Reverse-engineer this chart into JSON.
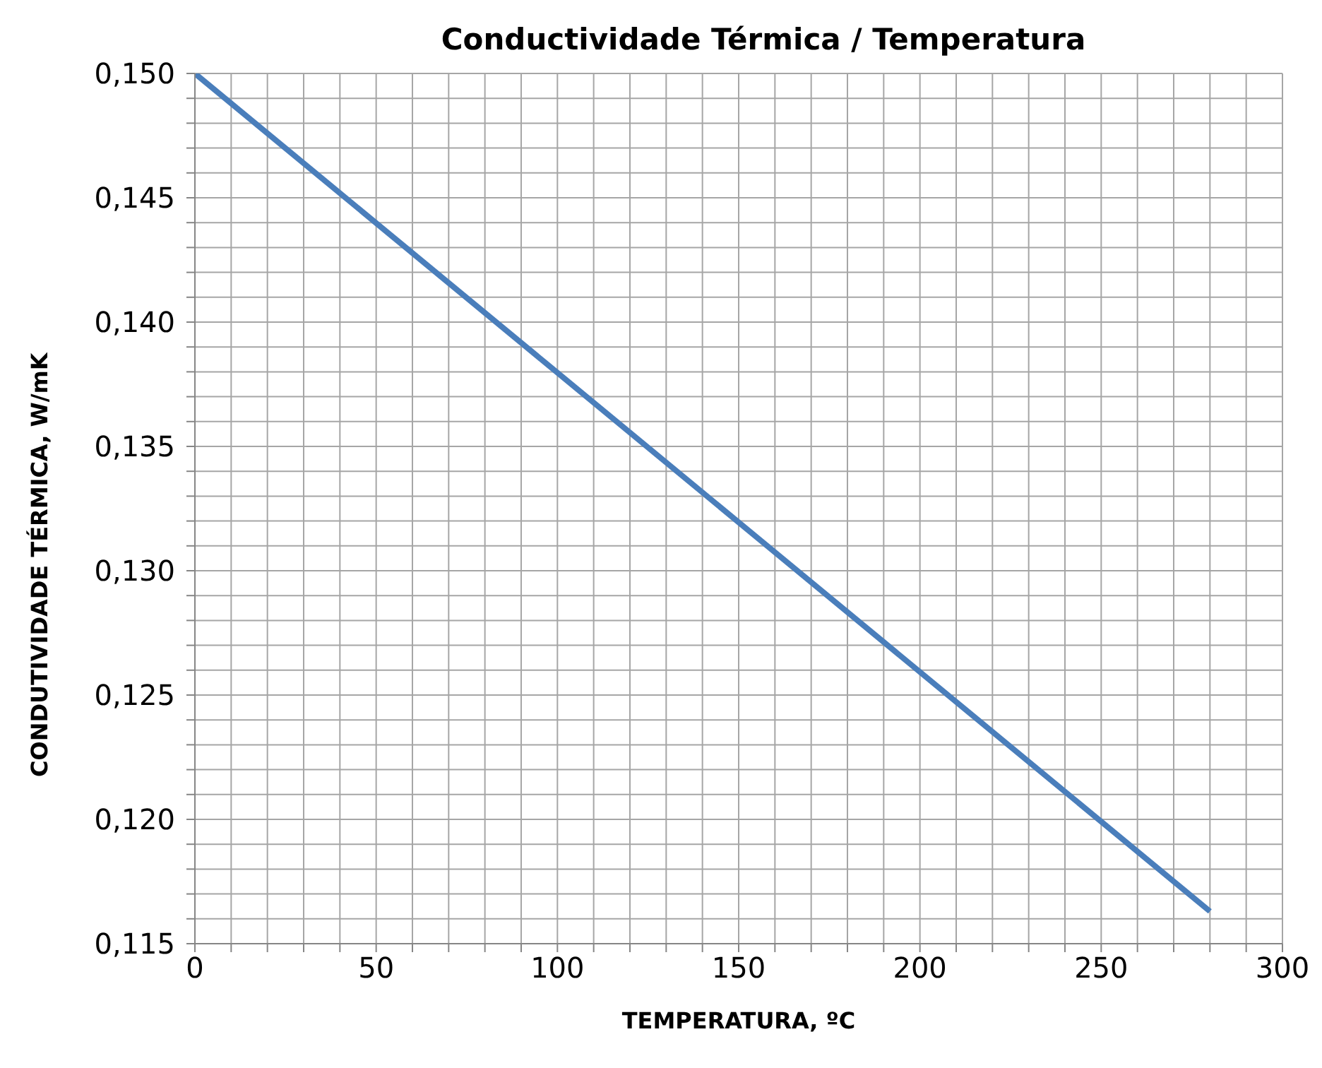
{
  "chart_data": {
    "type": "line",
    "title": "Conductividade Térmica / Temperatura",
    "xlabel": "TEMPERATURA, ºC",
    "ylabel": "CONDUTIVIDADE TÉRMICA, W/mK",
    "x": [
      0,
      280
    ],
    "series": [
      {
        "color": "#4a7ebb",
        "values": [
          0.15,
          0.1163
        ]
      }
    ],
    "xlim": [
      0,
      300
    ],
    "xticks": [
      0,
      {
        "value": 10,
        "label": null
      },
      {
        "value": 20,
        "label": null
      },
      {
        "value": 30,
        "label": null
      },
      {
        "value": 40,
        "label": null
      },
      50,
      {
        "value": 60,
        "label": null
      },
      {
        "value": 70,
        "label": null
      },
      {
        "value": 80,
        "label": null
      },
      {
        "value": 90,
        "label": null
      },
      100,
      {
        "value": 110,
        "label": null
      },
      {
        "value": 120,
        "label": null
      },
      {
        "value": 130,
        "label": null
      },
      {
        "value": 140,
        "label": null
      },
      150,
      {
        "value": 160,
        "label": null
      },
      {
        "value": 170,
        "label": null
      },
      {
        "value": 180,
        "label": null
      },
      {
        "value": 190,
        "label": null
      },
      200,
      {
        "value": 210,
        "label": null
      },
      {
        "value": 220,
        "label": null
      },
      {
        "value": 230,
        "label": null
      },
      {
        "value": 240,
        "label": null
      },
      250,
      {
        "value": 260,
        "label": null
      },
      {
        "value": 270,
        "label": null
      },
      {
        "value": 280,
        "label": null
      },
      {
        "value": 290,
        "label": null
      },
      300
    ],
    "ylim": [
      0.115,
      0.15
    ],
    "yticks": [
      {
        "value": 0.115,
        "label": "0,115"
      },
      {
        "value": 0.116,
        "label": null
      },
      {
        "value": 0.117,
        "label": null
      },
      {
        "value": 0.118,
        "label": null
      },
      {
        "value": 0.119,
        "label": null
      },
      {
        "value": 0.12,
        "label": "0,120"
      },
      {
        "value": 0.121,
        "label": null
      },
      {
        "value": 0.122,
        "label": null
      },
      {
        "value": 0.123,
        "label": null
      },
      {
        "value": 0.124,
        "label": null
      },
      {
        "value": 0.125,
        "label": "0,125"
      },
      {
        "value": 0.126,
        "label": null
      },
      {
        "value": 0.127,
        "label": null
      },
      {
        "value": 0.128,
        "label": null
      },
      {
        "value": 0.129,
        "label": null
      },
      {
        "value": 0.13,
        "label": "0,130"
      },
      {
        "value": 0.131,
        "label": null
      },
      {
        "value": 0.132,
        "label": null
      },
      {
        "value": 0.133,
        "label": null
      },
      {
        "value": 0.134,
        "label": null
      },
      {
        "value": 0.135,
        "label": "0,135"
      },
      {
        "value": 0.136,
        "label": null
      },
      {
        "value": 0.137,
        "label": null
      },
      {
        "value": 0.138,
        "label": null
      },
      {
        "value": 0.139,
        "label": null
      },
      {
        "value": 0.14,
        "label": "0,140"
      },
      {
        "value": 0.141,
        "label": null
      },
      {
        "value": 0.142,
        "label": null
      },
      {
        "value": 0.143,
        "label": null
      },
      {
        "value": 0.144,
        "label": null
      },
      {
        "value": 0.145,
        "label": "0,145"
      },
      {
        "value": 0.146,
        "label": null
      },
      {
        "value": 0.147,
        "label": null
      },
      {
        "value": 0.148,
        "label": null
      },
      {
        "value": 0.149,
        "label": null
      },
      {
        "value": 0.15,
        "label": "0,150"
      }
    ],
    "grid": true,
    "marker": "none",
    "line_style": "solid"
  }
}
